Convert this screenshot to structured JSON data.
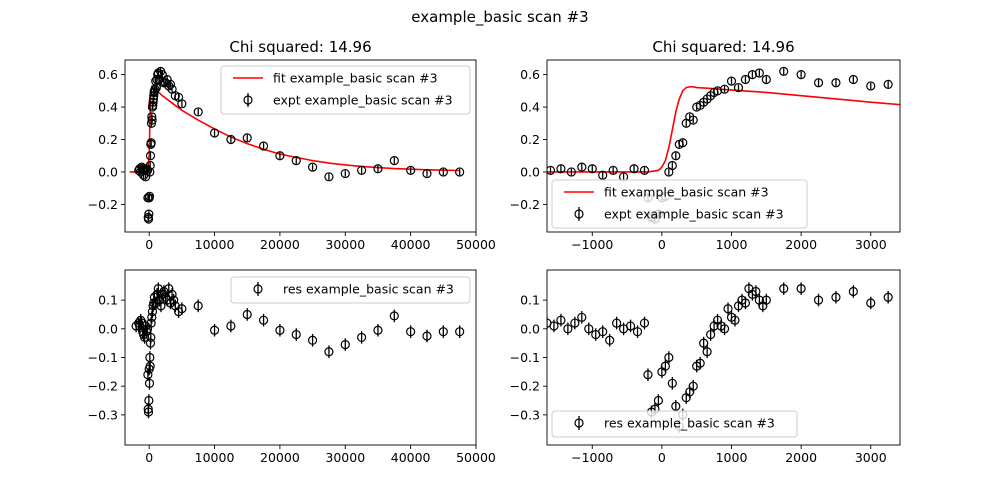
{
  "figure": {
    "suptitle": "example_basic scan #3",
    "fit_color": "#ff0000",
    "expt_color": "#000000"
  },
  "chart_data": [
    {
      "type": "line",
      "panel": "top-left",
      "title": "Chi squared:  14.96",
      "xlim": [
        -3700,
        50000
      ],
      "ylim": [
        -0.37,
        0.69
      ],
      "xticks": [
        0,
        10000,
        20000,
        30000,
        40000,
        50000
      ],
      "yticks": [
        -0.2,
        0.0,
        0.2,
        0.4,
        0.6
      ],
      "xtick_labels": [
        "0",
        "10000",
        "20000",
        "30000",
        "40000",
        "50000"
      ],
      "ytick_labels": [
        "−0.2",
        "0.0",
        "0.2",
        "0.4",
        "0.6"
      ],
      "legend": {
        "placement": "upper right",
        "entries": [
          "fit example_basic scan #3",
          "expt example_basic scan #3"
        ]
      },
      "series": [
        {
          "name": "fit example_basic scan #3",
          "kind": "line",
          "color": "#ff0000",
          "x": [
            -3000,
            -1000,
            -200,
            0,
            100,
            200,
            300,
            400,
            500,
            700,
            1000,
            1500,
            2000,
            3000,
            4000,
            5000,
            7500,
            10000,
            12500,
            15000,
            17500,
            20000,
            22500,
            25000,
            27500,
            30000,
            32500,
            35000,
            37500,
            40000,
            42500,
            45000,
            47500
          ],
          "y": [
            0.0,
            0.0,
            0.01,
            0.1,
            0.3,
            0.45,
            0.51,
            0.525,
            0.52,
            0.51,
            0.5,
            0.49,
            0.47,
            0.44,
            0.41,
            0.38,
            0.32,
            0.265,
            0.215,
            0.175,
            0.14,
            0.11,
            0.09,
            0.07,
            0.055,
            0.043,
            0.034,
            0.027,
            0.021,
            0.017,
            0.013,
            0.011,
            0.009
          ]
        },
        {
          "name": "expt example_basic scan #3",
          "kind": "errorbar",
          "color": "#000000",
          "yerr": 0.02,
          "x": [
            -1600,
            -1450,
            -1300,
            -1150,
            -1000,
            -850,
            -700,
            -550,
            -400,
            -250,
            -200,
            -150,
            -100,
            -50,
            0,
            50,
            100,
            150,
            200,
            250,
            300,
            350,
            400,
            450,
            500,
            550,
            600,
            650,
            700,
            750,
            800,
            900,
            1000,
            1100,
            1200,
            1300,
            1400,
            1500,
            1750,
            2000,
            2250,
            2500,
            2750,
            3000,
            3250,
            3500,
            4000,
            4500,
            5000,
            7500,
            10000,
            12500,
            15000,
            17500,
            20000,
            22500,
            25000,
            27500,
            30000,
            32500,
            35000,
            37500,
            40000,
            42500,
            45000,
            47500
          ],
          "y": [
            0.01,
            0.02,
            0.0,
            0.03,
            0.02,
            -0.02,
            0.01,
            -0.03,
            0.02,
            0.01,
            -0.16,
            -0.28,
            -0.29,
            -0.26,
            -0.16,
            -0.15,
            0.0,
            0.04,
            0.1,
            0.17,
            0.18,
            0.3,
            0.34,
            0.32,
            0.4,
            0.41,
            0.43,
            0.45,
            0.47,
            0.49,
            0.5,
            0.51,
            0.56,
            0.52,
            0.57,
            0.6,
            0.61,
            0.57,
            0.62,
            0.6,
            0.55,
            0.55,
            0.57,
            0.53,
            0.54,
            0.51,
            0.47,
            0.46,
            0.42,
            0.37,
            0.24,
            0.2,
            0.21,
            0.16,
            0.1,
            0.07,
            0.03,
            -0.03,
            -0.01,
            0.01,
            0.02,
            0.07,
            0.01,
            -0.01,
            0.0,
            0.0
          ]
        }
      ]
    },
    {
      "type": "line",
      "panel": "top-right",
      "title": "Chi squared:  14.96",
      "xlim": [
        -1650,
        3420
      ],
      "ylim": [
        -0.37,
        0.69
      ],
      "xticks": [
        -1000,
        0,
        1000,
        2000,
        3000
      ],
      "yticks": [
        -0.2,
        0.0,
        0.2,
        0.4,
        0.6
      ],
      "xtick_labels": [
        "−1000",
        "0",
        "1000",
        "2000",
        "3000"
      ],
      "ytick_labels": [
        "−0.2",
        "0.0",
        "0.2",
        "0.4",
        "0.6"
      ],
      "legend": {
        "placement": "lower left",
        "entries": [
          "fit example_basic scan #3",
          "expt example_basic scan #3"
        ]
      },
      "series": [
        {
          "name": "fit example_basic scan #3",
          "kind": "line",
          "color": "#ff0000",
          "x": [
            -1650,
            -1000,
            -500,
            -200,
            -50,
            0,
            50,
            100,
            150,
            200,
            250,
            300,
            350,
            400,
            450,
            500,
            700,
            1000,
            1500,
            2000,
            2500,
            3000,
            3420
          ],
          "y": [
            0.0,
            0.0,
            0.0,
            0.0,
            0.01,
            0.03,
            0.07,
            0.15,
            0.26,
            0.37,
            0.45,
            0.5,
            0.52,
            0.525,
            0.525,
            0.52,
            0.515,
            0.505,
            0.49,
            0.47,
            0.45,
            0.43,
            0.415
          ]
        },
        {
          "name": "expt example_basic scan #3",
          "kind": "errorbar",
          "color": "#000000",
          "yerr": 0.02,
          "x": [
            -1600,
            -1450,
            -1300,
            -1150,
            -1000,
            -850,
            -700,
            -550,
            -400,
            -250,
            -200,
            -150,
            -100,
            -50,
            0,
            50,
            100,
            150,
            200,
            250,
            300,
            350,
            400,
            450,
            500,
            550,
            600,
            650,
            700,
            750,
            800,
            900,
            1000,
            1100,
            1200,
            1300,
            1400,
            1500,
            1750,
            2000,
            2250,
            2500,
            2750,
            3000,
            3250
          ],
          "y": [
            0.01,
            0.02,
            0.0,
            0.03,
            0.02,
            -0.02,
            0.01,
            -0.03,
            0.02,
            0.01,
            -0.16,
            -0.28,
            -0.29,
            -0.26,
            -0.16,
            -0.15,
            0.0,
            0.04,
            0.1,
            0.17,
            0.18,
            0.3,
            0.34,
            0.32,
            0.4,
            0.41,
            0.43,
            0.45,
            0.47,
            0.49,
            0.5,
            0.51,
            0.56,
            0.52,
            0.57,
            0.6,
            0.61,
            0.57,
            0.62,
            0.6,
            0.55,
            0.55,
            0.57,
            0.53,
            0.54
          ]
        }
      ]
    },
    {
      "type": "scatter",
      "panel": "bottom-left",
      "xlim": [
        -3700,
        50000
      ],
      "ylim": [
        -0.405,
        0.205
      ],
      "xticks": [
        0,
        10000,
        20000,
        30000,
        40000,
        50000
      ],
      "yticks": [
        -0.3,
        -0.2,
        -0.1,
        0.0,
        0.1
      ],
      "xtick_labels": [
        "0",
        "10000",
        "20000",
        "30000",
        "40000",
        "50000"
      ],
      "ytick_labels": [
        "−0.3",
        "−0.2",
        "−0.1",
        "0.0",
        "0.1"
      ],
      "legend": {
        "placement": "upper right",
        "entries": [
          "res example_basic scan #3"
        ]
      },
      "series": [
        {
          "name": "res example_basic scan #3",
          "kind": "errorbar",
          "color": "#000000",
          "yerr": 0.022,
          "x": [
            -2000,
            -1600,
            -1450,
            -1300,
            -1150,
            -1000,
            -850,
            -700,
            -550,
            -400,
            -250,
            -200,
            -150,
            -100,
            -50,
            0,
            50,
            100,
            150,
            200,
            250,
            300,
            400,
            500,
            600,
            700,
            800,
            1000,
            1200,
            1400,
            1600,
            1800,
            2000,
            2250,
            2500,
            2750,
            3000,
            3250,
            3500,
            3750,
            4000,
            4500,
            5000,
            7500,
            10000,
            12500,
            15000,
            17500,
            20000,
            22500,
            25000,
            27500,
            30000,
            32500,
            35000,
            37500,
            40000,
            42500,
            45000,
            47500
          ],
          "y": [
            0.01,
            0.02,
            0.01,
            0.03,
            0.02,
            -0.01,
            -0.02,
            -0.03,
            0.01,
            -0.01,
            0.0,
            -0.16,
            -0.28,
            -0.29,
            -0.25,
            -0.14,
            -0.19,
            -0.1,
            -0.13,
            -0.05,
            -0.03,
            0.02,
            0.04,
            0.06,
            0.08,
            0.09,
            0.11,
            0.09,
            0.12,
            0.14,
            0.1,
            0.08,
            0.12,
            0.13,
            0.11,
            0.1,
            0.14,
            0.09,
            0.12,
            0.1,
            0.08,
            0.06,
            0.07,
            0.08,
            -0.005,
            0.01,
            0.05,
            0.03,
            -0.005,
            -0.02,
            -0.04,
            -0.08,
            -0.055,
            -0.03,
            -0.005,
            0.045,
            -0.01,
            -0.025,
            -0.01,
            -0.01
          ]
        }
      ]
    },
    {
      "type": "scatter",
      "panel": "bottom-right",
      "xlim": [
        -1650,
        3420
      ],
      "ylim": [
        -0.405,
        0.205
      ],
      "xticks": [
        -1000,
        0,
        1000,
        2000,
        3000
      ],
      "yticks": [
        -0.3,
        -0.2,
        -0.1,
        0.0,
        0.1
      ],
      "xtick_labels": [
        "−1000",
        "0",
        "1000",
        "2000",
        "3000"
      ],
      "ytick_labels": [
        "−0.3",
        "−0.2",
        "−0.1",
        "0.0",
        "0.1"
      ],
      "legend": {
        "placement": "lower left",
        "entries": [
          "res example_basic scan #3"
        ]
      },
      "series": [
        {
          "name": "res example_basic scan #3",
          "kind": "errorbar",
          "color": "#000000",
          "yerr": 0.022,
          "x": [
            -1650,
            -1550,
            -1450,
            -1350,
            -1250,
            -1150,
            -1050,
            -950,
            -850,
            -750,
            -650,
            -550,
            -450,
            -350,
            -250,
            -200,
            -150,
            -100,
            -50,
            0,
            50,
            100,
            150,
            200,
            250,
            300,
            350,
            400,
            450,
            500,
            550,
            600,
            650,
            700,
            750,
            800,
            850,
            900,
            950,
            1000,
            1050,
            1100,
            1150,
            1200,
            1250,
            1300,
            1350,
            1400,
            1450,
            1500,
            1750,
            2000,
            2250,
            2500,
            2750,
            3000,
            3250
          ],
          "y": [
            0.02,
            0.01,
            0.03,
            0.0,
            0.02,
            0.04,
            0.0,
            -0.02,
            -0.01,
            -0.04,
            0.02,
            0.0,
            0.01,
            -0.01,
            0.02,
            -0.16,
            -0.29,
            -0.28,
            -0.25,
            -0.15,
            -0.13,
            -0.1,
            -0.19,
            -0.27,
            -0.34,
            -0.3,
            -0.24,
            -0.22,
            -0.2,
            -0.13,
            -0.12,
            -0.05,
            -0.08,
            -0.02,
            0.01,
            0.03,
            0.01,
            0.0,
            0.07,
            0.04,
            0.03,
            0.08,
            0.1,
            0.09,
            0.14,
            0.12,
            0.13,
            0.1,
            0.08,
            0.1,
            0.14,
            0.14,
            0.1,
            0.11,
            0.13,
            0.09,
            0.11
          ]
        }
      ]
    }
  ]
}
